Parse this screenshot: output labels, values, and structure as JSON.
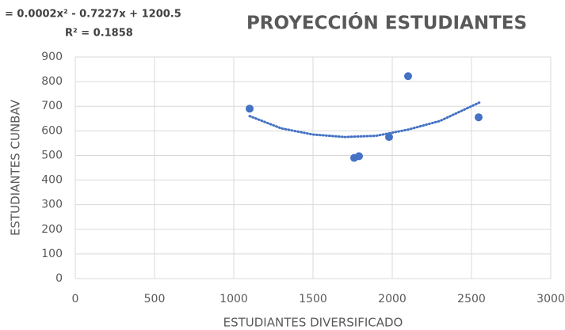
{
  "chart_data": {
    "type": "scatter",
    "title": "PROYECCIÓN ESTUDIANTES",
    "annotations": [
      "= 0.0002x² - 0.7227x + 1200.5",
      "R² = 0.1858"
    ],
    "xlabel": "ESTUDIANTES DIVERSIFICADO",
    "ylabel": "ESTUDIANTES CUNBAV",
    "series": [
      {
        "color": "#4472c4",
        "x": [
          1100,
          1760,
          1790,
          1980,
          2100,
          2545
        ],
        "values": [
          690,
          490,
          497,
          575,
          822,
          655
        ]
      }
    ],
    "trendline": {
      "color": "#4472c4",
      "x": [
        1100,
        1300,
        1500,
        1700,
        1900,
        2100,
        2300,
        2550
      ],
      "values": [
        660,
        610,
        585,
        575,
        580,
        605,
        640,
        715
      ]
    },
    "xlim": [
      0,
      3000
    ],
    "xticks": [
      0,
      500,
      1000,
      1500,
      2000,
      2500,
      3000
    ],
    "ylim": [
      0,
      900
    ],
    "yticks": [
      0,
      100,
      200,
      300,
      400,
      500,
      600,
      700,
      800,
      900
    ],
    "grid": true
  }
}
